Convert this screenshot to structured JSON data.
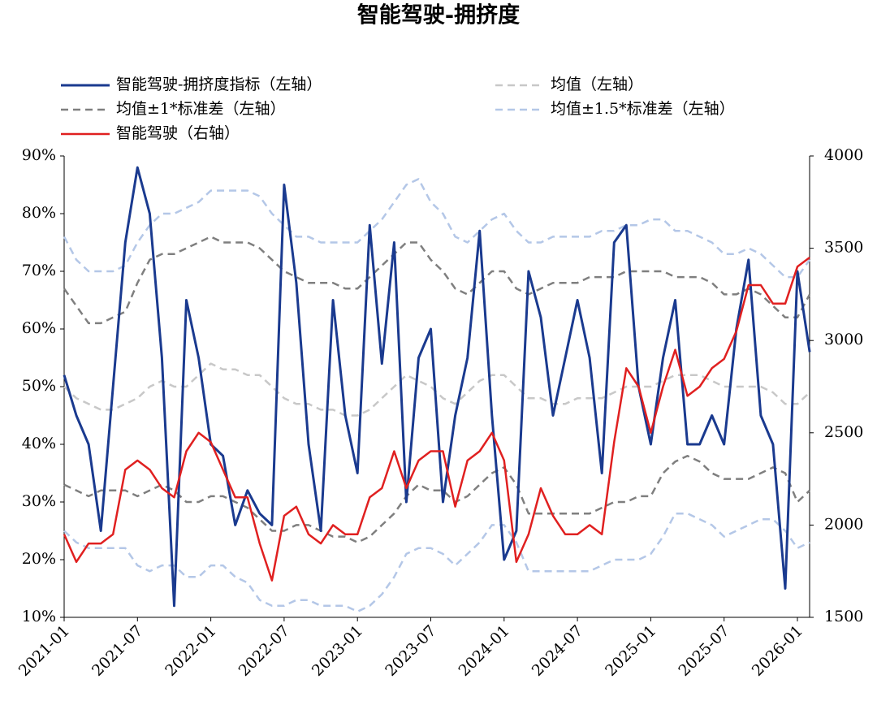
{
  "chart_data": {
    "type": "line",
    "title": "智能驾驶-拥挤度",
    "x": [
      "2021-01",
      "2021-02",
      "2021-03",
      "2021-04",
      "2021-05",
      "2021-06",
      "2021-07",
      "2021-08",
      "2021-09",
      "2021-10",
      "2021-11",
      "2021-12",
      "2022-01",
      "2022-02",
      "2022-03",
      "2022-04",
      "2022-05",
      "2022-06",
      "2022-07",
      "2022-08",
      "2022-09",
      "2022-10",
      "2022-11",
      "2022-12",
      "2023-01",
      "2023-02",
      "2023-03",
      "2023-04",
      "2023-05",
      "2023-06",
      "2023-07",
      "2023-08",
      "2023-09",
      "2023-10",
      "2023-11",
      "2023-12",
      "2024-01",
      "2024-02",
      "2024-03",
      "2024-04",
      "2024-05",
      "2024-06",
      "2024-07",
      "2024-08",
      "2024-09",
      "2024-10",
      "2024-11",
      "2024-12",
      "2025-01",
      "2025-02",
      "2025-03",
      "2025-04",
      "2025-05",
      "2025-06",
      "2025-07",
      "2025-08",
      "2025-09",
      "2025-10",
      "2025-11",
      "2025-12",
      "2026-01",
      "2026-02"
    ],
    "xtick_every": 6,
    "ylim": [
      10,
      90
    ],
    "yticks": [
      {
        "value": 10,
        "label": "10%"
      },
      {
        "value": 20,
        "label": "20%"
      },
      {
        "value": 30,
        "label": "30%"
      },
      {
        "value": 40,
        "label": "40%"
      },
      {
        "value": 50,
        "label": "50%"
      },
      {
        "value": 60,
        "label": "60%"
      },
      {
        "value": 70,
        "label": "70%"
      },
      {
        "value": 80,
        "label": "80%"
      },
      {
        "value": 90,
        "label": "90%"
      }
    ],
    "y2lim": [
      1500,
      4000
    ],
    "y2ticks": [
      1500,
      2000,
      2500,
      3000,
      3500,
      4000
    ],
    "series": [
      {
        "name": "智能驾驶-拥挤度指标（左轴）",
        "color": "#1a3a8f",
        "width": 3,
        "values": [
          52,
          45,
          40,
          25,
          50,
          75,
          88,
          80,
          55,
          12,
          65,
          55,
          40,
          38,
          26,
          32,
          28,
          26,
          85,
          68,
          40,
          25,
          65,
          45,
          35,
          78,
          54,
          75,
          30,
          55,
          60,
          30,
          45,
          55,
          77,
          45,
          20,
          25,
          70,
          62,
          45,
          55,
          65,
          55,
          35,
          75,
          78,
          50,
          40,
          55,
          65,
          40,
          40,
          45,
          40,
          60,
          72,
          45,
          40,
          15,
          70,
          56
        ]
      },
      {
        "name": "均值（左轴）",
        "color": "#c8c8c8",
        "dash": true,
        "width": 2.5,
        "values": [
          50,
          48,
          47,
          46,
          46,
          47,
          48,
          50,
          51,
          50,
          50,
          52,
          54,
          53,
          53,
          52,
          52,
          50,
          48,
          47,
          47,
          46,
          46,
          45,
          45,
          46,
          48,
          50,
          52,
          51,
          50,
          48,
          47,
          49,
          51,
          52,
          52,
          50,
          48,
          48,
          47,
          47,
          48,
          48,
          48,
          49,
          50,
          50,
          50,
          51,
          52,
          52,
          52,
          51,
          50,
          50,
          50,
          50,
          49,
          47,
          47,
          49
        ]
      },
      {
        "name": "均值±1*标准差（左轴）",
        "color": "#7f7f7f",
        "dash": true,
        "width": 2.5,
        "upper": [
          67,
          64,
          61,
          61,
          62,
          63,
          68,
          72,
          73,
          73,
          74,
          75,
          76,
          75,
          75,
          75,
          74,
          72,
          70,
          69,
          68,
          68,
          68,
          67,
          67,
          69,
          71,
          73,
          75,
          75,
          72,
          70,
          67,
          66,
          68,
          70,
          70,
          67,
          66,
          67,
          68,
          68,
          68,
          69,
          69,
          69,
          70,
          70,
          70,
          70,
          69,
          69,
          69,
          68,
          66,
          66,
          67,
          66,
          64,
          62,
          62,
          66
        ],
        "lower": [
          33,
          32,
          31,
          32,
          32,
          32,
          31,
          32,
          33,
          32,
          30,
          30,
          31,
          31,
          30,
          29,
          27,
          25,
          25,
          26,
          26,
          25,
          24,
          24,
          23,
          24,
          26,
          28,
          31,
          33,
          32,
          32,
          30,
          31,
          33,
          35,
          36,
          33,
          28,
          28,
          28,
          28,
          28,
          28,
          29,
          30,
          30,
          31,
          31,
          35,
          37,
          38,
          37,
          35,
          34,
          34,
          34,
          35,
          36,
          35,
          30,
          32
        ]
      },
      {
        "name": "均值±1.5*标准差（左轴）",
        "color": "#b4c7e7",
        "dash": true,
        "width": 2.5,
        "upper": [
          76,
          72,
          70,
          70,
          70,
          71,
          75,
          78,
          80,
          80,
          81,
          82,
          84,
          84,
          84,
          84,
          83,
          80,
          78,
          76,
          76,
          75,
          75,
          75,
          75,
          77,
          79,
          82,
          85,
          86,
          82,
          80,
          76,
          75,
          77,
          79,
          80,
          77,
          75,
          75,
          76,
          76,
          76,
          76,
          77,
          77,
          78,
          78,
          79,
          79,
          77,
          77,
          76,
          75,
          73,
          73,
          74,
          73,
          71,
          69,
          69,
          72
        ],
        "lower": [
          25,
          23,
          22,
          22,
          22,
          22,
          19,
          18,
          19,
          19,
          17,
          17,
          19,
          19,
          17,
          16,
          13,
          12,
          12,
          13,
          13,
          12,
          12,
          12,
          11,
          12,
          14,
          17,
          21,
          22,
          22,
          21,
          19,
          21,
          23,
          26,
          26,
          23,
          18,
          18,
          18,
          18,
          18,
          18,
          19,
          20,
          20,
          20,
          21,
          24,
          28,
          28,
          27,
          26,
          24,
          25,
          26,
          27,
          27,
          25,
          22,
          23
        ]
      },
      {
        "name": "智能驾驶（右轴）",
        "color": "#e02020",
        "width": 2.5,
        "axis": "y2",
        "values": [
          1950,
          1800,
          1900,
          1900,
          1950,
          2300,
          2350,
          2300,
          2200,
          2150,
          2400,
          2500,
          2450,
          2300,
          2150,
          2150,
          1900,
          1700,
          2050,
          2100,
          1950,
          1900,
          2000,
          1950,
          1950,
          2150,
          2200,
          2400,
          2200,
          2350,
          2400,
          2400,
          2100,
          2350,
          2400,
          2500,
          2350,
          1800,
          1950,
          2200,
          2050,
          1950,
          1950,
          2000,
          1950,
          2450,
          2850,
          2750,
          2500,
          2750,
          2950,
          2700,
          2750,
          2850,
          2900,
          3050,
          3300,
          3300,
          3200,
          3200,
          3400,
          3450
        ]
      }
    ]
  }
}
